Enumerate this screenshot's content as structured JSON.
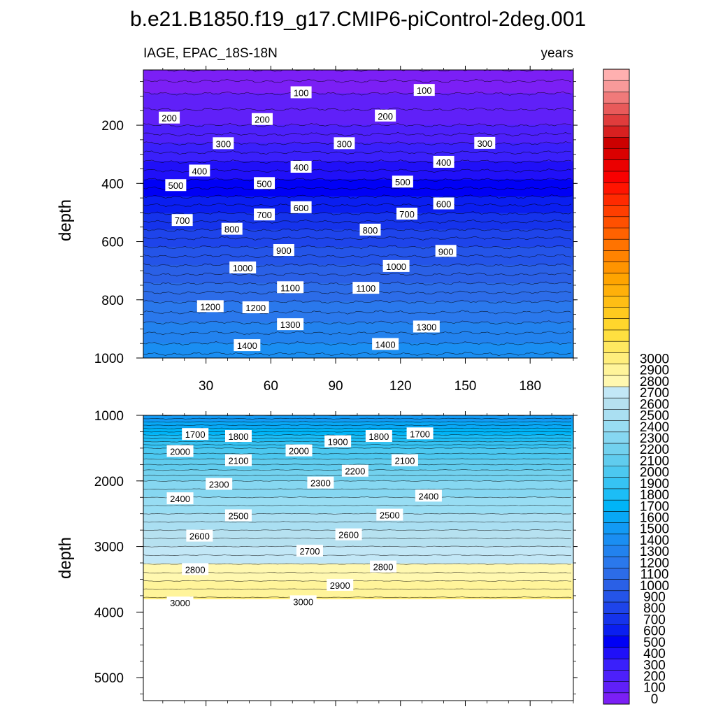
{
  "figure": {
    "title": "b.e21.B1850.f19_g17.CMIP6-piControl-2deg.001",
    "left_string": "IAGE, EPAC_18S-18N",
    "right_string": "years",
    "ylabel": "depth"
  },
  "colors": {
    "levels_low": [
      "#7B1FF5",
      "#6020F8",
      "#4D20FA",
      "#3A20FB",
      "#2010F8",
      "#0000F5",
      "#0A1EF0",
      "#1533EB",
      "#1E44EA",
      "#2454E8",
      "#2A60E6",
      "#2C6CE8",
      "#2A78EC",
      "#2282EE",
      "#1A8EF2",
      "#129AF5",
      "#08A8F6",
      "#00B4F7",
      "#1CBDF6",
      "#36C3F3",
      "#4CC8F0",
      "#60CCEE",
      "#72D1EE",
      "#86D7F1",
      "#98DDF3",
      "#AADFF2",
      "#B6E1F0",
      "#C2E7F6"
    ],
    "levels_high": [
      "#FFF8B0",
      "#FFF49A",
      "#FFEE7C",
      "#FFE860",
      "#FFE040",
      "#FFD62C",
      "#FFCA1E",
      "#FFBE14",
      "#FFB00A",
      "#FFA400",
      "#FF9400",
      "#FF8300",
      "#FF7300",
      "#FF6200",
      "#FF5000",
      "#FF3E00",
      "#FF2A00",
      "#FF1400",
      "#F80000",
      "#EB0000",
      "#DA0000",
      "#CC0000",
      "#D82020",
      "#E03C3C",
      "#E85A5A",
      "#F07A7A",
      "#F89A9A",
      "#FFB0B0"
    ]
  },
  "chart_data": [
    {
      "type": "contour",
      "panel": "upper",
      "variable": "IAGE",
      "region": "EPAC_18S-18N",
      "units": "years",
      "xlabel": "",
      "ylabel": "depth",
      "x_range": [
        1,
        200
      ],
      "y_range": [
        1000,
        10
      ],
      "x_ticks": [
        30,
        60,
        90,
        120,
        150,
        180
      ],
      "y_ticks": [
        200,
        400,
        600,
        800,
        1000
      ],
      "depth_age_profile": [
        [
          10,
          0
        ],
        [
          75,
          85
        ],
        [
          200,
          200
        ],
        [
          400,
          520
        ],
        [
          600,
          870
        ],
        [
          800,
          1190
        ],
        [
          1000,
          1470
        ]
      ],
      "contour_labels": [
        {
          "value": 100,
          "x": 74,
          "depth": 88
        },
        {
          "value": 100,
          "x": 131,
          "depth": 80
        },
        {
          "value": 200,
          "x": 13,
          "depth": 175
        },
        {
          "value": 200,
          "x": 56,
          "depth": 180
        },
        {
          "value": 200,
          "x": 113,
          "depth": 168
        },
        {
          "value": 300,
          "x": 38,
          "depth": 263
        },
        {
          "value": 300,
          "x": 94,
          "depth": 263
        },
        {
          "value": 300,
          "x": 159,
          "depth": 262
        },
        {
          "value": 400,
          "x": 27,
          "depth": 357
        },
        {
          "value": 400,
          "x": 74,
          "depth": 344
        },
        {
          "value": 400,
          "x": 140,
          "depth": 327
        },
        {
          "value": 500,
          "x": 16,
          "depth": 407
        },
        {
          "value": 500,
          "x": 57,
          "depth": 400
        },
        {
          "value": 500,
          "x": 121,
          "depth": 395
        },
        {
          "value": 600,
          "x": 74,
          "depth": 483
        },
        {
          "value": 600,
          "x": 140,
          "depth": 470
        },
        {
          "value": 700,
          "x": 19,
          "depth": 527
        },
        {
          "value": 700,
          "x": 57,
          "depth": 508
        },
        {
          "value": 700,
          "x": 123,
          "depth": 505
        },
        {
          "value": 800,
          "x": 42,
          "depth": 557
        },
        {
          "value": 800,
          "x": 106,
          "depth": 560
        },
        {
          "value": 900,
          "x": 66,
          "depth": 630
        },
        {
          "value": 900,
          "x": 141,
          "depth": 633
        },
        {
          "value": 1000,
          "x": 47,
          "depth": 690
        },
        {
          "value": 1000,
          "x": 118,
          "depth": 685
        },
        {
          "value": 1100,
          "x": 69,
          "depth": 758
        },
        {
          "value": 1100,
          "x": 104,
          "depth": 760
        },
        {
          "value": 1200,
          "x": 32,
          "depth": 823
        },
        {
          "value": 1200,
          "x": 53,
          "depth": 827
        },
        {
          "value": 1300,
          "x": 69,
          "depth": 885
        },
        {
          "value": 1300,
          "x": 132,
          "depth": 893
        },
        {
          "value": 1400,
          "x": 49,
          "depth": 957
        },
        {
          "value": 1400,
          "x": 113,
          "depth": 953
        }
      ]
    },
    {
      "type": "contour",
      "panel": "lower",
      "variable": "IAGE",
      "units": "years",
      "xlabel": "",
      "ylabel": "depth",
      "x_range": [
        1,
        200
      ],
      "y_range": [
        5350,
        1000
      ],
      "y_ticks": [
        1000,
        2000,
        3000,
        4000,
        5000
      ],
      "depth_age_profile": [
        [
          1000,
          1500
        ],
        [
          1200,
          1700
        ],
        [
          1500,
          2000
        ],
        [
          2000,
          2300
        ],
        [
          2500,
          2500
        ],
        [
          3000,
          2700
        ],
        [
          3400,
          2850
        ],
        [
          3800,
          3010
        ],
        [
          5350,
          3010
        ]
      ],
      "contour_labels": [
        {
          "value": 1700,
          "x": 25,
          "depth": 1290
        },
        {
          "value": 1700,
          "x": 129,
          "depth": 1280
        },
        {
          "value": 1800,
          "x": 45,
          "depth": 1320
        },
        {
          "value": 1800,
          "x": 110,
          "depth": 1320
        },
        {
          "value": 1900,
          "x": 91,
          "depth": 1400
        },
        {
          "value": 2000,
          "x": 18,
          "depth": 1550
        },
        {
          "value": 2000,
          "x": 73,
          "depth": 1540
        },
        {
          "value": 2100,
          "x": 45,
          "depth": 1690
        },
        {
          "value": 2100,
          "x": 122,
          "depth": 1690
        },
        {
          "value": 2200,
          "x": 99,
          "depth": 1850
        },
        {
          "value": 2300,
          "x": 36,
          "depth": 2050
        },
        {
          "value": 2300,
          "x": 83,
          "depth": 2030
        },
        {
          "value": 2400,
          "x": 18,
          "depth": 2270
        },
        {
          "value": 2400,
          "x": 133,
          "depth": 2230
        },
        {
          "value": 2500,
          "x": 45,
          "depth": 2530
        },
        {
          "value": 2500,
          "x": 115,
          "depth": 2520
        },
        {
          "value": 2600,
          "x": 27,
          "depth": 2840
        },
        {
          "value": 2600,
          "x": 96,
          "depth": 2820
        },
        {
          "value": 2700,
          "x": 78,
          "depth": 3070
        },
        {
          "value": 2800,
          "x": 25,
          "depth": 3350
        },
        {
          "value": 2800,
          "x": 112,
          "depth": 3310
        },
        {
          "value": 2900,
          "x": 92,
          "depth": 3590
        },
        {
          "value": 3000,
          "x": 18,
          "depth": 3860
        },
        {
          "value": 3000,
          "x": 75,
          "depth": 3840
        }
      ]
    }
  ],
  "colorbar": {
    "levels": [
      0,
      100,
      200,
      300,
      400,
      500,
      600,
      700,
      800,
      900,
      1000,
      1100,
      1200,
      1300,
      1400,
      1500,
      1600,
      1700,
      1800,
      1900,
      2000,
      2100,
      2200,
      2300,
      2400,
      2500,
      2600,
      2700,
      2800,
      2900,
      3000
    ]
  }
}
